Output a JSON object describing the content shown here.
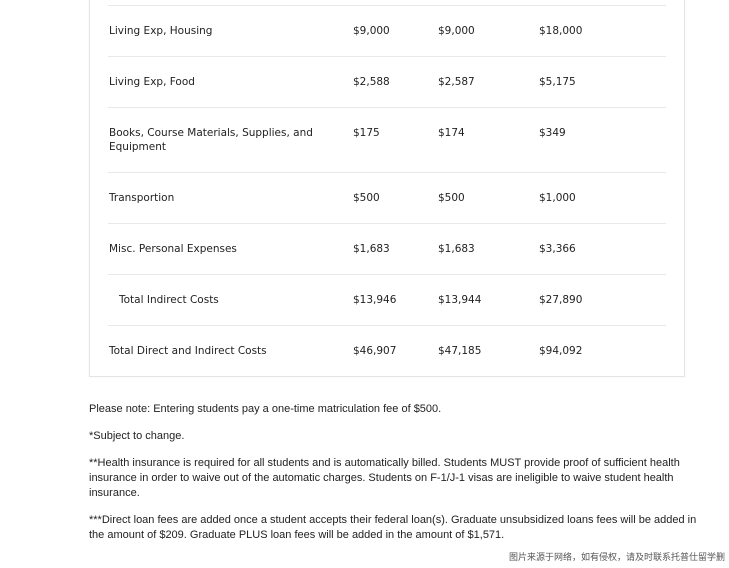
{
  "table": {
    "rows": [
      {
        "label": "Living Exp, Housing",
        "v1": "$9,000",
        "v2": "$9,000",
        "total": "$18,000"
      },
      {
        "label": "Living Exp, Food",
        "v1": "$2,588",
        "v2": "$2,587",
        "total": "$5,175"
      },
      {
        "label": "Books, Course Materials, Supplies, and Equipment",
        "v1": "$175",
        "v2": "$174",
        "total": "$349"
      },
      {
        "label": "Transportion",
        "v1": "$500",
        "v2": "$500",
        "total": "$1,000"
      },
      {
        "label": "Misc. Personal Expenses",
        "v1": "$1,683",
        "v2": "$1,683",
        "total": "$3,366"
      },
      {
        "label": "Total Indirect Costs",
        "v1": "$13,946",
        "v2": "$13,944",
        "total": "$27,890"
      },
      {
        "label": "Total Direct and Indirect Costs",
        "v1": "$46,907",
        "v2": "$47,185",
        "total": "$94,092"
      }
    ]
  },
  "notes": [
    "Please note: Entering students pay a one-time matriculation fee of $500.",
    "*Subject to change.",
    "**Health insurance is required for all students and is automatically billed. Students MUST provide proof of sufficient health insurance in order to waive out of the automatic charges. Students on F-1/J-1 visas are ineligible to waive student health insurance.",
    "***Direct loan fees are added once a student accepts their federal loan(s). Graduate unsubsidized loans fees will be added in the amount of $209. Graduate PLUS loan fees will be added in the amount of $1,571."
  ],
  "watermark": "图片来源于网络，如有侵权，请及时联系托普仕留学删"
}
